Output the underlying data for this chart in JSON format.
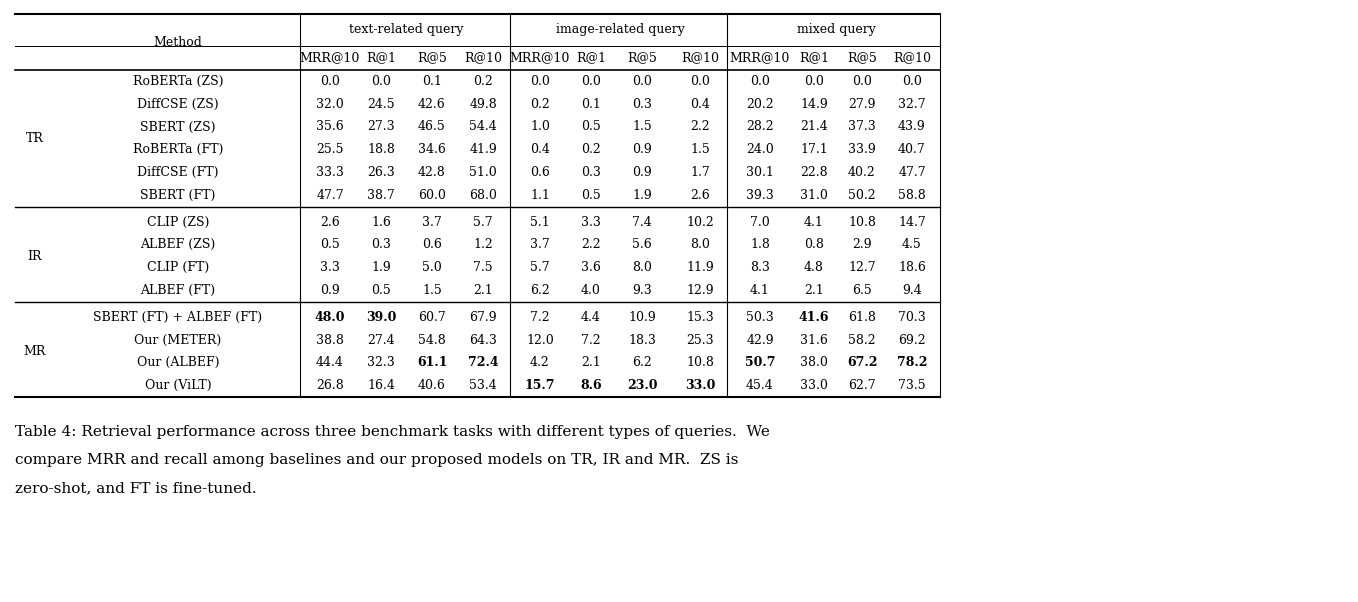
{
  "title_line1": "Table 4: Retrieval performance across three benchmark tasks with different types of queries.  We",
  "title_line2": "compare MRR and recall among baselines and our proposed models on TR, IR and MR.  ZS is",
  "title_line3": "zero-shot, and FT is fine-tuned.",
  "col_groups": [
    {
      "label": "text-related query",
      "cols": [
        "MRR@10",
        "R@1",
        "R@5",
        "R@10"
      ]
    },
    {
      "label": "image-related query",
      "cols": [
        "MRR@10",
        "R@1",
        "R@5",
        "R@10"
      ]
    },
    {
      "label": "mixed query",
      "cols": [
        "MRR@10",
        "R@1",
        "R@5",
        "R@10"
      ]
    }
  ],
  "row_groups": [
    {
      "label": "TR",
      "rows": [
        {
          "method": "RoBERTa (ZS)",
          "text": [
            "0.0",
            "0.0",
            "0.1",
            "0.2"
          ],
          "image": [
            "0.0",
            "0.0",
            "0.0",
            "0.0"
          ],
          "mixed": [
            "0.0",
            "0.0",
            "0.0",
            "0.0"
          ],
          "bold_text": [],
          "bold_image": [],
          "bold_mixed": []
        },
        {
          "method": "DiffCSE (ZS)",
          "text": [
            "32.0",
            "24.5",
            "42.6",
            "49.8"
          ],
          "image": [
            "0.2",
            "0.1",
            "0.3",
            "0.4"
          ],
          "mixed": [
            "20.2",
            "14.9",
            "27.9",
            "32.7"
          ],
          "bold_text": [],
          "bold_image": [],
          "bold_mixed": []
        },
        {
          "method": "SBERT (ZS)",
          "text": [
            "35.6",
            "27.3",
            "46.5",
            "54.4"
          ],
          "image": [
            "1.0",
            "0.5",
            "1.5",
            "2.2"
          ],
          "mixed": [
            "28.2",
            "21.4",
            "37.3",
            "43.9"
          ],
          "bold_text": [],
          "bold_image": [],
          "bold_mixed": []
        },
        {
          "method": "RoBERTa (FT)",
          "text": [
            "25.5",
            "18.8",
            "34.6",
            "41.9"
          ],
          "image": [
            "0.4",
            "0.2",
            "0.9",
            "1.5"
          ],
          "mixed": [
            "24.0",
            "17.1",
            "33.9",
            "40.7"
          ],
          "bold_text": [],
          "bold_image": [],
          "bold_mixed": []
        },
        {
          "method": "DiffCSE (FT)",
          "text": [
            "33.3",
            "26.3",
            "42.8",
            "51.0"
          ],
          "image": [
            "0.6",
            "0.3",
            "0.9",
            "1.7"
          ],
          "mixed": [
            "30.1",
            "22.8",
            "40.2",
            "47.7"
          ],
          "bold_text": [],
          "bold_image": [],
          "bold_mixed": []
        },
        {
          "method": "SBERT (FT)",
          "text": [
            "47.7",
            "38.7",
            "60.0",
            "68.0"
          ],
          "image": [
            "1.1",
            "0.5",
            "1.9",
            "2.6"
          ],
          "mixed": [
            "39.3",
            "31.0",
            "50.2",
            "58.8"
          ],
          "bold_text": [],
          "bold_image": [],
          "bold_mixed": []
        }
      ]
    },
    {
      "label": "IR",
      "rows": [
        {
          "method": "CLIP (ZS)",
          "text": [
            "2.6",
            "1.6",
            "3.7",
            "5.7"
          ],
          "image": [
            "5.1",
            "3.3",
            "7.4",
            "10.2"
          ],
          "mixed": [
            "7.0",
            "4.1",
            "10.8",
            "14.7"
          ],
          "bold_text": [],
          "bold_image": [],
          "bold_mixed": []
        },
        {
          "method": "ALBEF (ZS)",
          "text": [
            "0.5",
            "0.3",
            "0.6",
            "1.2"
          ],
          "image": [
            "3.7",
            "2.2",
            "5.6",
            "8.0"
          ],
          "mixed": [
            "1.8",
            "0.8",
            "2.9",
            "4.5"
          ],
          "bold_text": [],
          "bold_image": [],
          "bold_mixed": []
        },
        {
          "method": "CLIP (FT)",
          "text": [
            "3.3",
            "1.9",
            "5.0",
            "7.5"
          ],
          "image": [
            "5.7",
            "3.6",
            "8.0",
            "11.9"
          ],
          "mixed": [
            "8.3",
            "4.8",
            "12.7",
            "18.6"
          ],
          "bold_text": [],
          "bold_image": [],
          "bold_mixed": []
        },
        {
          "method": "ALBEF (FT)",
          "text": [
            "0.9",
            "0.5",
            "1.5",
            "2.1"
          ],
          "image": [
            "6.2",
            "4.0",
            "9.3",
            "12.9"
          ],
          "mixed": [
            "4.1",
            "2.1",
            "6.5",
            "9.4"
          ],
          "bold_text": [],
          "bold_image": [],
          "bold_mixed": []
        }
      ]
    },
    {
      "label": "MR",
      "rows": [
        {
          "method": "SBERT (FT) + ALBEF (FT)",
          "text": [
            "48.0",
            "39.0",
            "60.7",
            "67.9"
          ],
          "image": [
            "7.2",
            "4.4",
            "10.9",
            "15.3"
          ],
          "mixed": [
            "50.3",
            "41.6",
            "61.8",
            "70.3"
          ],
          "bold_text": [
            0,
            1
          ],
          "bold_image": [],
          "bold_mixed": [
            1
          ]
        },
        {
          "method": "Our (METER)",
          "text": [
            "38.8",
            "27.4",
            "54.8",
            "64.3"
          ],
          "image": [
            "12.0",
            "7.2",
            "18.3",
            "25.3"
          ],
          "mixed": [
            "42.9",
            "31.6",
            "58.2",
            "69.2"
          ],
          "bold_text": [],
          "bold_image": [],
          "bold_mixed": []
        },
        {
          "method": "Our (ALBEF)",
          "text": [
            "44.4",
            "32.3",
            "61.1",
            "72.4"
          ],
          "image": [
            "4.2",
            "2.1",
            "6.2",
            "10.8"
          ],
          "mixed": [
            "50.7",
            "38.0",
            "67.2",
            "78.2"
          ],
          "bold_text": [
            2,
            3
          ],
          "bold_image": [],
          "bold_mixed": [
            0,
            2,
            3
          ]
        },
        {
          "method": "Our (ViLT)",
          "text": [
            "26.8",
            "16.4",
            "40.6",
            "53.4"
          ],
          "image": [
            "15.7",
            "8.6",
            "23.0",
            "33.0"
          ],
          "mixed": [
            "45.4",
            "33.0",
            "62.7",
            "73.5"
          ],
          "bold_text": [],
          "bold_image": [
            0,
            1,
            2,
            3
          ],
          "bold_mixed": []
        }
      ]
    }
  ],
  "fig_width": 13.58,
  "fig_height": 6.02,
  "dpi": 100
}
